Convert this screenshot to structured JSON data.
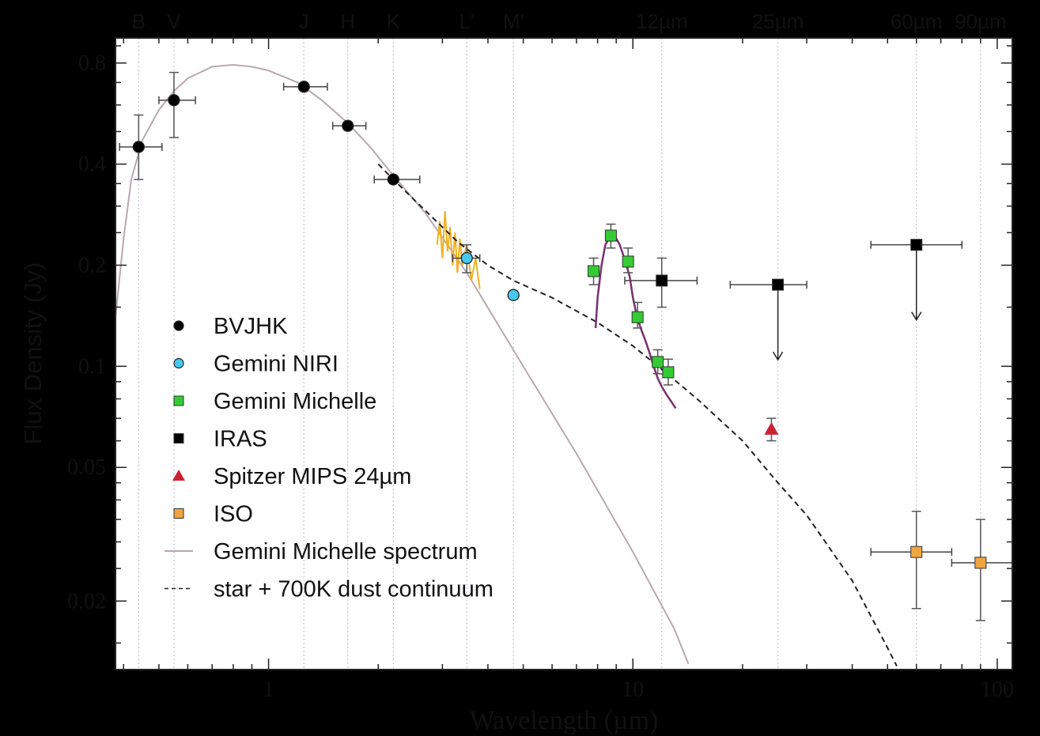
{
  "chart_data": {
    "type": "scatter",
    "xlabel": "Wavelength (µm)",
    "ylabel": "Flux Density (Jy)",
    "xscale": "log",
    "yscale": "log",
    "xlim": [
      0.38,
      110
    ],
    "ylim": [
      0.0125,
      0.95
    ],
    "x_ticks": [
      {
        "value": 1,
        "label": "1"
      },
      {
        "value": 10,
        "label": "10"
      },
      {
        "value": 100,
        "label": "100"
      }
    ],
    "y_ticks": [
      {
        "value": 0.02,
        "label": "0.02"
      },
      {
        "value": 0.05,
        "label": "0.05"
      },
      {
        "value": 0.1,
        "label": "0.1"
      },
      {
        "value": 0.2,
        "label": "0.2"
      },
      {
        "value": 0.4,
        "label": "0.4"
      },
      {
        "value": 0.8,
        "label": "0.8"
      }
    ],
    "bands": [
      {
        "label": "B",
        "x": 0.44
      },
      {
        "label": "V",
        "x": 0.55
      },
      {
        "label": "J",
        "x": 1.25
      },
      {
        "label": "H",
        "x": 1.65
      },
      {
        "label": "K",
        "x": 2.2
      },
      {
        "label": "L'",
        "x": 3.5
      },
      {
        "label": "M'",
        "x": 4.7
      },
      {
        "label": "12µm",
        "x": 12
      },
      {
        "label": "25µm",
        "x": 25
      },
      {
        "label": "60µm",
        "x": 60
      },
      {
        "label": "90µm",
        "x": 90
      }
    ],
    "grid": "vertical dotted lines at band wavelengths",
    "legend_placement": "left-center",
    "series": [
      {
        "name": "BVJHK",
        "marker": "circle",
        "color": "#000000",
        "points": [
          {
            "x": 0.44,
            "y": 0.45,
            "xerr": [
              0.39,
              0.51
            ],
            "yerr": [
              0.36,
              0.56
            ]
          },
          {
            "x": 0.55,
            "y": 0.62,
            "xerr": [
              0.5,
              0.63
            ],
            "yerr": [
              0.48,
              0.75
            ]
          },
          {
            "x": 1.25,
            "y": 0.68,
            "xerr": [
              1.1,
              1.45
            ]
          },
          {
            "x": 1.65,
            "y": 0.52,
            "xerr": [
              1.5,
              1.85
            ]
          },
          {
            "x": 2.2,
            "y": 0.36,
            "xerr": [
              1.95,
              2.6
            ]
          }
        ]
      },
      {
        "name": "Gemini NIRI",
        "marker": "circle",
        "color": "#48c8f0",
        "points": [
          {
            "x": 3.5,
            "y": 0.21,
            "xerr": [
              3.2,
              3.8
            ],
            "yerr": [
              0.19,
              0.23
            ]
          },
          {
            "x": 4.7,
            "y": 0.163
          }
        ]
      },
      {
        "name": "Gemini Michelle",
        "marker": "square",
        "color": "#33cc33",
        "points": [
          {
            "x": 7.8,
            "y": 0.192,
            "yerr": [
              0.175,
              0.21
            ]
          },
          {
            "x": 8.7,
            "y": 0.245,
            "yerr": [
              0.225,
              0.265
            ]
          },
          {
            "x": 9.7,
            "y": 0.205,
            "yerr": [
              0.19,
              0.225
            ]
          },
          {
            "x": 10.3,
            "y": 0.14,
            "yerr": [
              0.13,
              0.155
            ]
          },
          {
            "x": 11.7,
            "y": 0.103,
            "yerr": [
              0.095,
              0.112
            ]
          },
          {
            "x": 12.5,
            "y": 0.096,
            "yerr": [
              0.088,
              0.105
            ]
          }
        ]
      },
      {
        "name": "IRAS",
        "marker": "square",
        "color": "#000000",
        "points": [
          {
            "x": 12,
            "y": 0.18,
            "xerr": [
              9.5,
              15
            ],
            "yerr": [
              0.15,
              0.21
            ]
          },
          {
            "x": 25,
            "y": 0.175,
            "xerr": [
              18.5,
              30
            ],
            "upper_limit": true
          },
          {
            "x": 60,
            "y": 0.23,
            "xerr": [
              45,
              80
            ],
            "upper_limit": true
          }
        ]
      },
      {
        "name": "Spitzer MIPS 24µm",
        "marker": "triangle",
        "color": "#cc2233",
        "points": [
          {
            "x": 24,
            "y": 0.065,
            "yerr": [
              0.06,
              0.07
            ]
          }
        ]
      },
      {
        "name": "ISO",
        "marker": "square",
        "color": "#f0a640",
        "points": [
          {
            "x": 60,
            "y": 0.028,
            "xerr": [
              45,
              75
            ],
            "yerr": [
              0.019,
              0.037
            ]
          },
          {
            "x": 90,
            "y": 0.026,
            "xerr": [
              75,
              110
            ],
            "yerr": [
              0.0175,
              0.035
            ]
          }
        ]
      },
      {
        "name": "Gemini Michelle spectrum",
        "marker": "line",
        "color": "#7a3070"
      },
      {
        "name": "star + 700K dust continuum",
        "marker": "dashed-line",
        "color": "#222222"
      }
    ],
    "curves": {
      "photosphere_model": [
        [
          0.38,
          0.14
        ],
        [
          0.4,
          0.24
        ],
        [
          0.42,
          0.36
        ],
        [
          0.45,
          0.47
        ],
        [
          0.5,
          0.58
        ],
        [
          0.55,
          0.66
        ],
        [
          0.6,
          0.72
        ],
        [
          0.7,
          0.78
        ],
        [
          0.8,
          0.79
        ],
        [
          0.9,
          0.78
        ],
        [
          1.0,
          0.76
        ],
        [
          1.2,
          0.7
        ],
        [
          1.4,
          0.62
        ],
        [
          1.65,
          0.53
        ],
        [
          1.9,
          0.45
        ],
        [
          2.2,
          0.37
        ],
        [
          2.7,
          0.285
        ],
        [
          3.5,
          0.19
        ],
        [
          5.0,
          0.1
        ],
        [
          7.0,
          0.055
        ],
        [
          10,
          0.028
        ],
        [
          13,
          0.0165
        ],
        [
          14.2,
          0.013
        ]
      ],
      "dust_continuum": [
        [
          2.0,
          0.4
        ],
        [
          2.2,
          0.36
        ],
        [
          2.7,
          0.29
        ],
        [
          3.3,
          0.235
        ],
        [
          4.0,
          0.2
        ],
        [
          4.7,
          0.18
        ],
        [
          6.0,
          0.16
        ],
        [
          8.0,
          0.135
        ],
        [
          10,
          0.115
        ],
        [
          12,
          0.098
        ],
        [
          15,
          0.08
        ],
        [
          20,
          0.06
        ],
        [
          25,
          0.045
        ],
        [
          30,
          0.036
        ],
        [
          40,
          0.023
        ],
        [
          50,
          0.0145
        ],
        [
          53,
          0.0128
        ]
      ],
      "iso_spectrum": [
        [
          2.9,
          0.23
        ],
        [
          2.95,
          0.27
        ],
        [
          3.0,
          0.21
        ],
        [
          3.05,
          0.29
        ],
        [
          3.1,
          0.22
        ],
        [
          3.15,
          0.26
        ],
        [
          3.2,
          0.2
        ],
        [
          3.25,
          0.25
        ],
        [
          3.3,
          0.19
        ],
        [
          3.35,
          0.24
        ],
        [
          3.4,
          0.2
        ],
        [
          3.5,
          0.23
        ],
        [
          3.6,
          0.18
        ],
        [
          3.7,
          0.21
        ],
        [
          3.8,
          0.17
        ]
      ],
      "michelle_spectrum": [
        [
          7.9,
          0.13
        ],
        [
          8.0,
          0.16
        ],
        [
          8.2,
          0.2
        ],
        [
          8.4,
          0.23
        ],
        [
          8.6,
          0.24
        ],
        [
          8.8,
          0.245
        ],
        [
          9.0,
          0.24
        ],
        [
          9.2,
          0.23
        ],
        [
          9.4,
          0.215
        ],
        [
          9.6,
          0.2
        ],
        [
          9.8,
          0.185
        ],
        [
          10.0,
          0.16
        ],
        [
          10.2,
          0.145
        ],
        [
          10.5,
          0.13
        ],
        [
          10.8,
          0.12
        ],
        [
          11.1,
          0.11
        ],
        [
          11.4,
          0.1
        ],
        [
          11.7,
          0.092
        ],
        [
          12.0,
          0.087
        ],
        [
          12.4,
          0.082
        ],
        [
          12.8,
          0.078
        ],
        [
          13.1,
          0.075
        ]
      ]
    }
  }
}
